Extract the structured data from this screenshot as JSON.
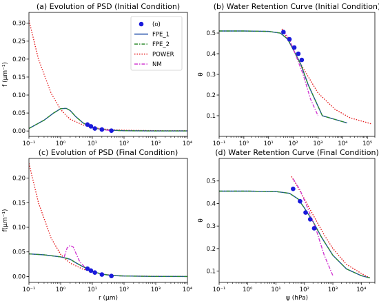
{
  "chart_data": [
    {
      "type": "line",
      "title": "(a) Evolution of PSD (Initial Condition)",
      "xlabel": "",
      "ylabel": "f (μm⁻¹)",
      "xscale": "log",
      "xlim": [
        0.1,
        10000
      ],
      "ylim": [
        -0.015,
        0.33
      ],
      "xticks": [
        0.1,
        1,
        10,
        100,
        1000,
        10000
      ],
      "xtick_labels": [
        "10⁻¹",
        "10⁰",
        "10¹",
        "10²",
        "10³",
        "10⁴"
      ],
      "yticks": [
        0.0,
        0.05,
        0.1,
        0.15,
        0.2,
        0.25,
        0.3
      ],
      "ytick_labels": [
        "0.00",
        "0.05",
        "0.10",
        "0.15",
        "0.20",
        "0.25",
        "0.30"
      ],
      "legend": {
        "placement": "top-right",
        "entries": [
          {
            "label": "(o)",
            "series": "obs"
          },
          {
            "label": "FPE_1",
            "series": "fpe1"
          },
          {
            "label": "FPE_2",
            "series": "fpe2"
          },
          {
            "label": "POWER",
            "series": "power"
          },
          {
            "label": "NM",
            "series": "nm"
          }
        ]
      },
      "series": [
        {
          "key": "power",
          "style": "dotted",
          "color": "#e41a1c",
          "x": [
            0.1,
            0.2,
            0.5,
            1.0,
            1.5,
            2,
            5,
            10,
            20,
            50,
            100,
            1000,
            10000
          ],
          "y": [
            0.308,
            0.2,
            0.105,
            0.06,
            0.043,
            0.033,
            0.017,
            0.01,
            0.006,
            0.003,
            0.002,
            0.001,
            0.0005
          ]
        },
        {
          "key": "fpe1",
          "style": "solid",
          "color": "#1f4aa8",
          "x": [
            0.1,
            0.3,
            0.6,
            1.0,
            1.5,
            2,
            3,
            5,
            8,
            12,
            20,
            40,
            100,
            1000,
            10000
          ],
          "y": [
            0.007,
            0.03,
            0.05,
            0.062,
            0.063,
            0.057,
            0.04,
            0.023,
            0.013,
            0.008,
            0.004,
            0.002,
            0.0008,
            0.0002,
            0.0001
          ]
        },
        {
          "key": "fpe2",
          "style": "dashdot",
          "color": "#2e8b2e",
          "x": [
            0.1,
            0.3,
            0.6,
            1.0,
            1.5,
            2,
            3,
            5,
            8,
            12,
            20,
            40,
            100,
            1000,
            10000
          ],
          "y": [
            0.007,
            0.03,
            0.05,
            0.062,
            0.063,
            0.057,
            0.04,
            0.023,
            0.013,
            0.008,
            0.004,
            0.002,
            0.0008,
            0.0002,
            0.0001
          ]
        },
        {
          "key": "nm",
          "style": "dashdot",
          "color": "#d23ad2",
          "x": [
            6,
            8,
            12,
            20,
            40
          ],
          "y": [
            0.02,
            0.014,
            0.008,
            0.004,
            0.001
          ]
        },
        {
          "key": "obs",
          "style": "points",
          "color": "#1a1adb",
          "x": [
            7,
            9,
            12,
            20,
            40
          ],
          "y": [
            0.018,
            0.013,
            0.007,
            0.004,
            0.001
          ]
        }
      ]
    },
    {
      "type": "line",
      "title": "(b) Water Retention Curve (Initial Condition)",
      "xlabel": "",
      "ylabel": "θ",
      "xscale": "log",
      "xlim": [
        0.1,
        200000
      ],
      "ylim": [
        0.0,
        0.6
      ],
      "xticks": [
        0.1,
        1,
        10,
        100,
        1000,
        10000,
        100000
      ],
      "xtick_labels": [
        "10⁻¹",
        "10⁰",
        "10¹",
        "10²",
        "10³",
        "10⁴",
        "10⁵"
      ],
      "yticks": [
        0.1,
        0.2,
        0.3,
        0.4,
        0.5
      ],
      "ytick_labels": [
        "0.1",
        "0.2",
        "0.3",
        "0.4",
        "0.5"
      ],
      "series": [
        {
          "key": "power",
          "style": "dotted",
          "color": "#e41a1c",
          "x": [
            35,
            60,
            100,
            200,
            500,
            1000,
            5000,
            20000,
            150000
          ],
          "y": [
            0.52,
            0.47,
            0.42,
            0.35,
            0.27,
            0.21,
            0.13,
            0.09,
            0.06
          ]
        },
        {
          "key": "fpe1",
          "style": "solid",
          "color": "#1f4aa8",
          "x": [
            0.1,
            1,
            10,
            30,
            60,
            100,
            200,
            400,
            1500,
            15000
          ],
          "y": [
            0.51,
            0.51,
            0.508,
            0.5,
            0.47,
            0.42,
            0.35,
            0.25,
            0.1,
            0.065
          ]
        },
        {
          "key": "fpe2",
          "style": "dashdot",
          "color": "#2e8b2e",
          "x": [
            0.1,
            1,
            10,
            30,
            60,
            100,
            200,
            400,
            1500,
            15000
          ],
          "y": [
            0.51,
            0.51,
            0.508,
            0.5,
            0.47,
            0.42,
            0.35,
            0.25,
            0.1,
            0.065
          ]
        },
        {
          "key": "nm",
          "style": "dashdot",
          "color": "#d23ad2",
          "x": [
            40,
            70,
            120,
            250,
            500,
            1000
          ],
          "y": [
            0.51,
            0.47,
            0.4,
            0.3,
            0.18,
            0.1
          ]
        },
        {
          "key": "obs",
          "style": "points",
          "color": "#1a1adb",
          "x": [
            40,
            70,
            110,
            160,
            220
          ],
          "y": [
            0.505,
            0.47,
            0.43,
            0.4,
            0.37
          ]
        }
      ]
    },
    {
      "type": "line",
      "title": "(c) Evolution of PSD (Final Condition)",
      "xlabel": "r (μm)",
      "ylabel": "f(μm⁻¹)",
      "xscale": "log",
      "xlim": [
        0.1,
        10000
      ],
      "ylim": [
        -0.012,
        0.24
      ],
      "xticks": [
        0.1,
        1,
        10,
        100,
        1000,
        10000
      ],
      "xtick_labels": [
        "10⁻¹",
        "10⁰",
        "10¹",
        "10²",
        "10³",
        "10⁴"
      ],
      "yticks": [
        0.0,
        0.05,
        0.1,
        0.15,
        0.2
      ],
      "ytick_labels": [
        "0.00",
        "0.05",
        "0.10",
        "0.15",
        "0.20"
      ],
      "series": [
        {
          "key": "power",
          "style": "dotted",
          "color": "#e41a1c",
          "x": [
            0.1,
            0.2,
            0.5,
            1.0,
            1.5,
            2,
            5,
            10,
            20,
            50,
            100,
            1000,
            10000
          ],
          "y": [
            0.23,
            0.15,
            0.078,
            0.045,
            0.034,
            0.027,
            0.015,
            0.009,
            0.005,
            0.002,
            0.001,
            0.0005,
            0.0002
          ]
        },
        {
          "key": "fpe1",
          "style": "solid",
          "color": "#1f4aa8",
          "x": [
            0.1,
            0.3,
            1,
            2,
            3,
            5,
            8,
            12,
            20,
            40,
            100,
            1000,
            10000
          ],
          "y": [
            0.046,
            0.044,
            0.04,
            0.035,
            0.028,
            0.02,
            0.014,
            0.009,
            0.005,
            0.002,
            0.001,
            0.0002,
            0.0001
          ]
        },
        {
          "key": "fpe2",
          "style": "dashdot",
          "color": "#2e8b2e",
          "x": [
            0.1,
            0.3,
            1,
            2,
            3,
            5,
            8,
            12,
            20,
            40,
            100,
            1000,
            10000
          ],
          "y": [
            0.046,
            0.044,
            0.04,
            0.035,
            0.028,
            0.02,
            0.014,
            0.009,
            0.005,
            0.002,
            0.001,
            0.0002,
            0.0001
          ]
        },
        {
          "key": "nm",
          "style": "dashdot",
          "color": "#d23ad2",
          "x": [
            1.3,
            1.6,
            2,
            2.5,
            3,
            4,
            6,
            10
          ],
          "y": [
            0.04,
            0.058,
            0.063,
            0.06,
            0.048,
            0.03,
            0.018,
            0.01
          ]
        },
        {
          "key": "obs",
          "style": "points",
          "color": "#1a1adb",
          "x": [
            7,
            9,
            12,
            20,
            40
          ],
          "y": [
            0.016,
            0.012,
            0.008,
            0.004,
            0.001
          ]
        }
      ]
    },
    {
      "type": "line",
      "title": "(d) Water Retention Curve (Final Condition)",
      "xlabel": "ψ (hPa)",
      "ylabel": "θ",
      "xscale": "log",
      "xlim": [
        0.1,
        30000
      ],
      "ylim": [
        0.05,
        0.6
      ],
      "xticks": [
        0.1,
        1,
        10,
        100,
        1000,
        10000
      ],
      "xtick_labels": [
        "10⁻¹",
        "10⁰",
        "10¹",
        "10²",
        "10³",
        "10⁴"
      ],
      "yticks": [
        0.1,
        0.2,
        0.3,
        0.4,
        0.5
      ],
      "ytick_labels": [
        "0.1",
        "0.2",
        "0.3",
        "0.4",
        "0.5"
      ],
      "series": [
        {
          "key": "power",
          "style": "dotted",
          "color": "#e41a1c",
          "x": [
            35,
            60,
            100,
            200,
            500,
            1000,
            3000,
            10000,
            20000
          ],
          "y": [
            0.52,
            0.47,
            0.42,
            0.35,
            0.26,
            0.2,
            0.13,
            0.09,
            0.07
          ]
        },
        {
          "key": "fpe1",
          "style": "solid",
          "color": "#1f4aa8",
          "x": [
            0.1,
            1,
            10,
            30,
            60,
            100,
            200,
            400,
            1000,
            3000,
            10000,
            20000
          ],
          "y": [
            0.455,
            0.455,
            0.453,
            0.445,
            0.42,
            0.38,
            0.32,
            0.25,
            0.17,
            0.11,
            0.08,
            0.07
          ]
        },
        {
          "key": "fpe2",
          "style": "dashdot",
          "color": "#2e8b2e",
          "x": [
            0.1,
            1,
            10,
            30,
            60,
            100,
            200,
            400,
            1000,
            3000,
            10000,
            20000
          ],
          "y": [
            0.455,
            0.455,
            0.453,
            0.445,
            0.42,
            0.38,
            0.32,
            0.25,
            0.17,
            0.11,
            0.08,
            0.07
          ]
        },
        {
          "key": "nm",
          "style": "dashdot",
          "color": "#d23ad2",
          "x": [
            40,
            70,
            120,
            250,
            500,
            1000
          ],
          "y": [
            0.51,
            0.46,
            0.39,
            0.29,
            0.17,
            0.08
          ]
        },
        {
          "key": "obs",
          "style": "points",
          "color": "#1a1adb",
          "x": [
            40,
            70,
            110,
            160,
            220
          ],
          "y": [
            0.465,
            0.41,
            0.36,
            0.33,
            0.29
          ]
        }
      ]
    }
  ]
}
